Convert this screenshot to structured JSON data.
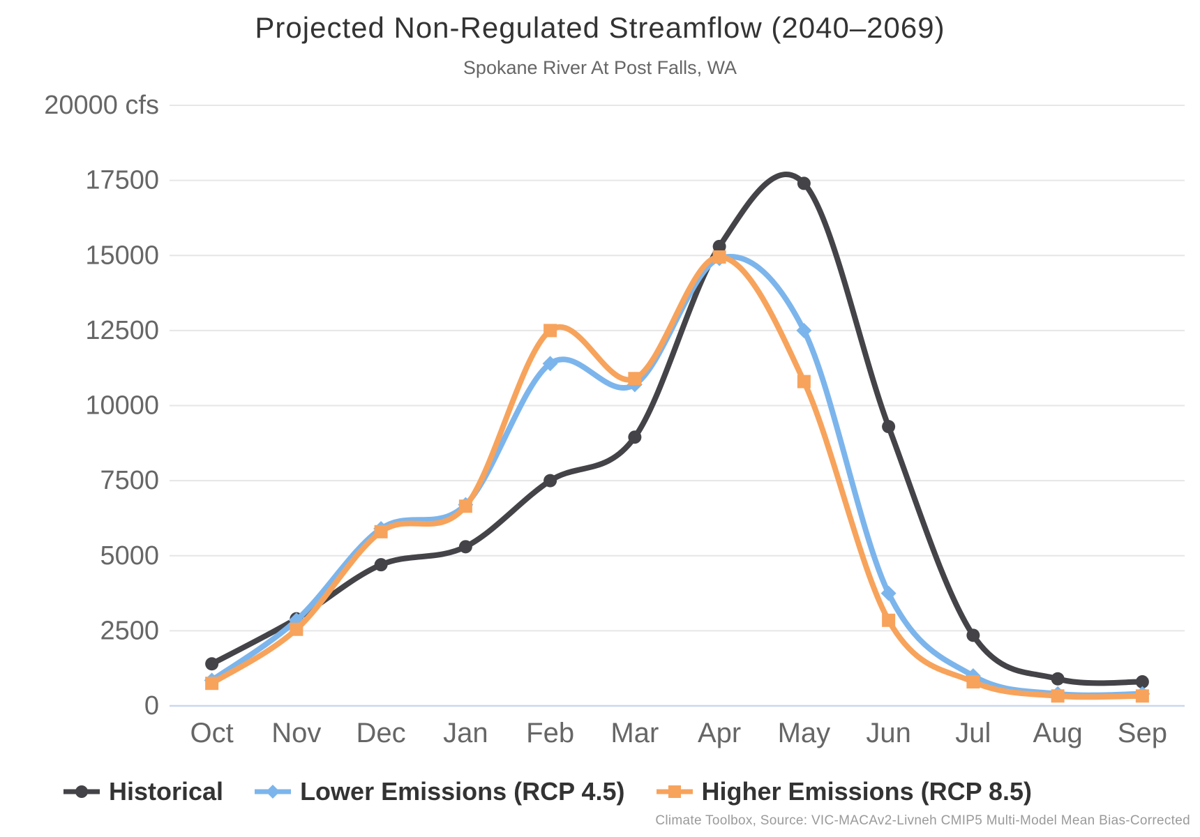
{
  "chart_data": {
    "type": "line",
    "title": "Projected Non-Regulated Streamflow (2040–2069)",
    "subtitle": "Spokane River At Post Falls, WA",
    "source": "Climate Toolbox, Source: VIC-MACAv2-Livneh CMIP5 Multi-Model Mean Bias-Corrected",
    "categories": [
      "Oct",
      "Nov",
      "Dec",
      "Jan",
      "Feb",
      "Mar",
      "Apr",
      "May",
      "Jun",
      "Jul",
      "Aug",
      "Sep"
    ],
    "y_axis": {
      "unit": "cfs",
      "min": 0,
      "max": 20000,
      "tick_interval": 2500,
      "tick_labels": [
        "0",
        "2500",
        "5000",
        "7500",
        "10000",
        "12500",
        "15000",
        "17500",
        "20000 cfs"
      ],
      "grid": true
    },
    "legend_position": "bottom",
    "series": [
      {
        "name": "Historical",
        "color": "#434348",
        "marker": "circle",
        "values": [
          1400,
          2900,
          4700,
          5300,
          7500,
          8950,
          15300,
          17400,
          9300,
          2350,
          900,
          800
        ]
      },
      {
        "name": "Lower Emissions (RCP 4.5)",
        "color": "#7cb5ec",
        "marker": "diamond",
        "values": [
          850,
          2850,
          5900,
          6700,
          11400,
          10700,
          14900,
          12500,
          3750,
          1000,
          400,
          400
        ]
      },
      {
        "name": "Higher Emissions (RCP 8.5)",
        "color": "#f7a35c",
        "marker": "square",
        "values": [
          750,
          2550,
          5800,
          6650,
          12500,
          10900,
          14950,
          10800,
          2850,
          800,
          330,
          330
        ]
      }
    ],
    "style_colors": {
      "grid_line": "#e6e6e6",
      "axis_line": "#ccd6eb",
      "tick_text": "#666666",
      "title_text": "#333333",
      "subtitle_text": "#666666",
      "legend_text": "#333333",
      "source_text": "#9a9a9a"
    }
  }
}
